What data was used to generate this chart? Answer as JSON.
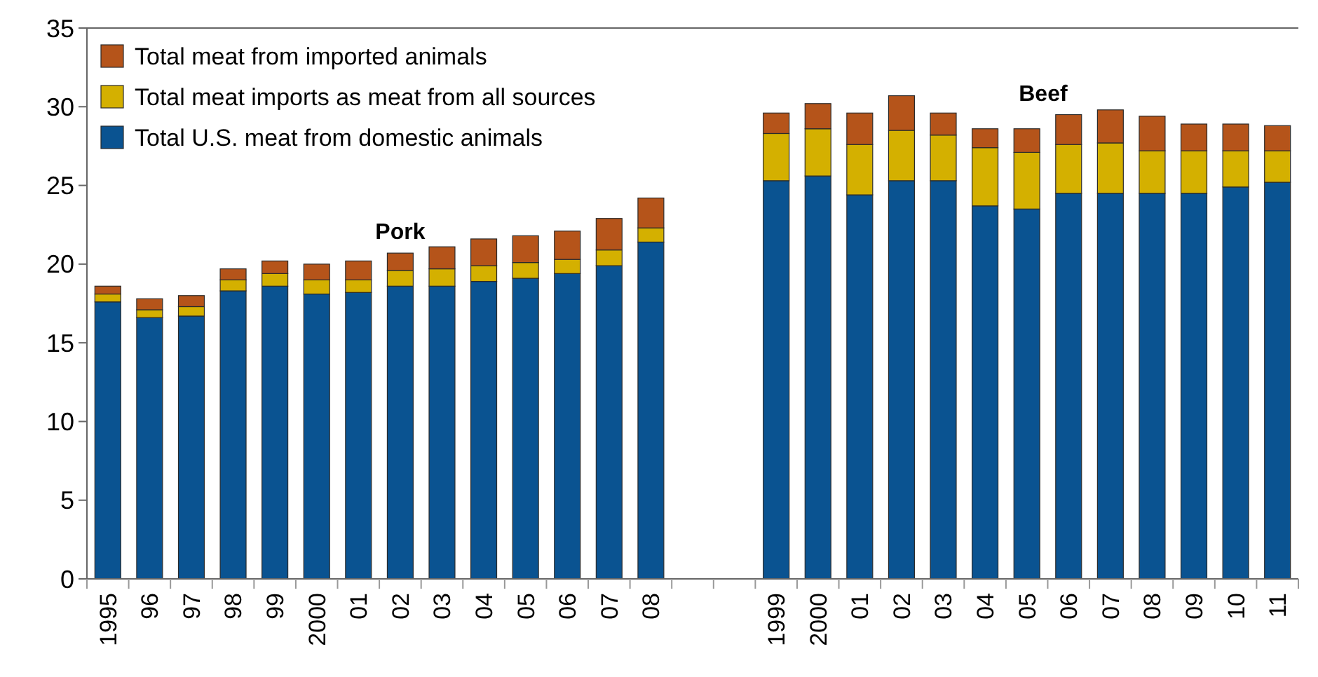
{
  "chart_data": {
    "type": "bar",
    "stacked": true,
    "categories": [
      "1995",
      "96",
      "97",
      "98",
      "99",
      "2000",
      "01",
      "02",
      "03",
      "04",
      "05",
      "06",
      "07",
      "08",
      null,
      null,
      "1999",
      "2000",
      "01",
      "02",
      "03",
      "04",
      "05",
      "06",
      "07",
      "08",
      "09",
      "10",
      "11"
    ],
    "series": [
      {
        "name": "Total U.S. meat from domestic animals",
        "color": "#0a5391",
        "values": [
          17.6,
          16.6,
          16.7,
          18.3,
          18.6,
          18.1,
          18.2,
          18.6,
          18.6,
          18.9,
          19.1,
          19.4,
          19.9,
          21.4,
          null,
          null,
          25.3,
          25.6,
          24.4,
          25.3,
          25.3,
          23.7,
          23.5,
          24.5,
          24.5,
          24.5,
          24.5,
          24.9,
          25.2
        ]
      },
      {
        "name": "Total meat imports as meat from all sources",
        "color": "#d4b000",
        "values": [
          0.5,
          0.5,
          0.6,
          0.7,
          0.8,
          0.9,
          0.8,
          1.0,
          1.1,
          1.0,
          1.0,
          0.9,
          1.0,
          0.9,
          null,
          null,
          3.0,
          3.0,
          3.2,
          3.2,
          2.9,
          3.7,
          3.6,
          3.1,
          3.2,
          2.7,
          2.7,
          2.3,
          2.0
        ]
      },
      {
        "name": "Total meat from imported animals",
        "color": "#b5541a",
        "values": [
          0.5,
          0.7,
          0.7,
          0.7,
          0.8,
          1.0,
          1.2,
          1.1,
          1.4,
          1.7,
          1.7,
          1.8,
          2.0,
          1.9,
          null,
          null,
          1.3,
          1.6,
          2.0,
          2.2,
          1.4,
          1.2,
          1.5,
          1.9,
          2.1,
          2.2,
          1.7,
          1.7,
          1.6
        ]
      }
    ],
    "ylim": [
      0,
      35
    ],
    "yticks": [
      0,
      5,
      10,
      15,
      20,
      25,
      30,
      35
    ],
    "annotations": [
      "Pork",
      "Beef"
    ],
    "legend": "top left",
    "grid": false
  }
}
